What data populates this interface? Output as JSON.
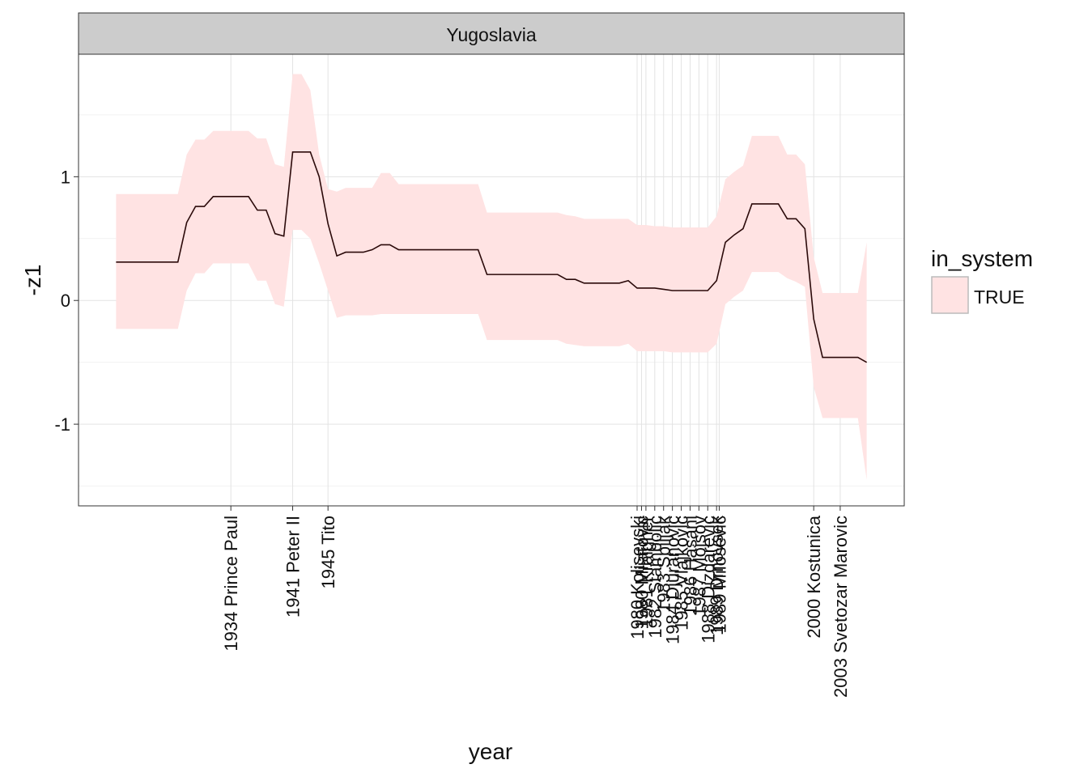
{
  "chart_data": {
    "type": "line",
    "facet": "Yugoslavia",
    "x_label": "year",
    "y_label": "-z1",
    "legend_title": "in_system",
    "x": [
      1921,
      1922,
      1923,
      1924,
      1925,
      1926,
      1927,
      1928,
      1929,
      1930,
      1931,
      1932,
      1933,
      1934,
      1935,
      1936,
      1937,
      1938,
      1939,
      1940,
      1941,
      1942,
      1943,
      1944,
      1945,
      1946,
      1947,
      1948,
      1949,
      1950,
      1951,
      1952,
      1953,
      1954,
      1955,
      1956,
      1957,
      1958,
      1959,
      1960,
      1961,
      1962,
      1963,
      1964,
      1965,
      1966,
      1967,
      1968,
      1969,
      1970,
      1971,
      1972,
      1973,
      1974,
      1975,
      1976,
      1977,
      1978,
      1979,
      1980,
      1981,
      1982,
      1983,
      1984,
      1985,
      1986,
      1987,
      1988,
      1989,
      1990,
      1991,
      1992,
      1993,
      1994,
      1995,
      1996,
      1997,
      1998,
      1999,
      2000,
      2001,
      2002,
      2003,
      2004,
      2005,
      2006
    ],
    "series": [
      {
        "name": "TRUE",
        "color": "#ffe3e3",
        "line_color": "#2b0a0a",
        "values": [
          0.31,
          0.31,
          0.31,
          0.31,
          0.31,
          0.31,
          0.31,
          0.31,
          0.63,
          0.76,
          0.76,
          0.84,
          0.84,
          0.84,
          0.84,
          0.84,
          0.73,
          0.73,
          0.54,
          0.52,
          1.2,
          1.2,
          1.2,
          1.0,
          0.62,
          0.36,
          0.39,
          0.39,
          0.39,
          0.41,
          0.45,
          0.45,
          0.41,
          0.41,
          0.41,
          0.41,
          0.41,
          0.41,
          0.41,
          0.41,
          0.41,
          0.41,
          0.21,
          0.21,
          0.21,
          0.21,
          0.21,
          0.21,
          0.21,
          0.21,
          0.21,
          0.17,
          0.17,
          0.14,
          0.14,
          0.14,
          0.14,
          0.14,
          0.16,
          0.1,
          0.1,
          0.1,
          0.09,
          0.08,
          0.08,
          0.08,
          0.08,
          0.08,
          0.16,
          0.47,
          0.53,
          0.58,
          0.78,
          0.78,
          0.78,
          0.78,
          0.66,
          0.66,
          0.58,
          -0.15,
          -0.46,
          -0.46,
          -0.46,
          -0.46,
          -0.46,
          -0.5
        ],
        "upper": [
          0.86,
          0.86,
          0.86,
          0.86,
          0.86,
          0.86,
          0.86,
          0.86,
          1.18,
          1.3,
          1.3,
          1.37,
          1.37,
          1.37,
          1.37,
          1.37,
          1.31,
          1.31,
          1.1,
          1.08,
          1.83,
          1.83,
          1.7,
          1.18,
          0.9,
          0.88,
          0.91,
          0.91,
          0.91,
          0.91,
          1.03,
          1.03,
          0.94,
          0.94,
          0.94,
          0.94,
          0.94,
          0.94,
          0.94,
          0.94,
          0.94,
          0.94,
          0.71,
          0.71,
          0.71,
          0.71,
          0.71,
          0.71,
          0.71,
          0.71,
          0.71,
          0.69,
          0.68,
          0.66,
          0.66,
          0.66,
          0.66,
          0.66,
          0.66,
          0.61,
          0.61,
          0.6,
          0.6,
          0.59,
          0.59,
          0.59,
          0.59,
          0.59,
          0.68,
          0.98,
          1.04,
          1.09,
          1.33,
          1.33,
          1.33,
          1.33,
          1.18,
          1.18,
          1.1,
          0.35,
          0.06,
          0.06,
          0.06,
          0.06,
          0.06,
          0.47
        ],
        "lower": [
          -0.23,
          -0.23,
          -0.23,
          -0.23,
          -0.23,
          -0.23,
          -0.23,
          -0.23,
          0.08,
          0.22,
          0.22,
          0.3,
          0.3,
          0.3,
          0.3,
          0.3,
          0.16,
          0.16,
          -0.03,
          -0.05,
          0.57,
          0.57,
          0.5,
          0.3,
          0.08,
          -0.14,
          -0.12,
          -0.12,
          -0.12,
          -0.12,
          -0.11,
          -0.11,
          -0.11,
          -0.11,
          -0.11,
          -0.11,
          -0.11,
          -0.11,
          -0.11,
          -0.11,
          -0.11,
          -0.11,
          -0.32,
          -0.32,
          -0.32,
          -0.32,
          -0.32,
          -0.32,
          -0.32,
          -0.32,
          -0.32,
          -0.35,
          -0.36,
          -0.37,
          -0.37,
          -0.37,
          -0.37,
          -0.37,
          -0.35,
          -0.41,
          -0.41,
          -0.41,
          -0.41,
          -0.42,
          -0.42,
          -0.42,
          -0.42,
          -0.42,
          -0.35,
          -0.03,
          0.03,
          0.08,
          0.23,
          0.23,
          0.23,
          0.23,
          0.18,
          0.15,
          0.11,
          -0.7,
          -0.95,
          -0.95,
          -0.95,
          -0.95,
          -0.95,
          -1.45
        ]
      }
    ],
    "xlim": [
      1916.75,
      2010.25
    ],
    "ylim": [
      -1.66,
      1.99
    ],
    "xticks": [
      {
        "value": 1934,
        "label": "1934 Prince Paul"
      },
      {
        "value": 1941,
        "label": "1941 Peter II"
      },
      {
        "value": 1945,
        "label": "1945 Tito"
      },
      {
        "value": 1980,
        "label": "1980 Kolisevski"
      },
      {
        "value": 1980.5,
        "label": "1980 Mijatovic"
      },
      {
        "value": 1981,
        "label": "1981 Kraigher"
      },
      {
        "value": 1982,
        "label": "1982 Stambolic"
      },
      {
        "value": 1983,
        "label": "1983 Spiljak"
      },
      {
        "value": 1984,
        "label": "1984 Djuranovic"
      },
      {
        "value": 1985,
        "label": "1985 Vlajkovic"
      },
      {
        "value": 1986,
        "label": "1986 Hasani"
      },
      {
        "value": 1987,
        "label": "1987 Mojsov"
      },
      {
        "value": 1988,
        "label": "1988 Dizdarevic"
      },
      {
        "value": 1989,
        "label": "1989 Drnovsek"
      },
      {
        "value": 1989.3,
        "label": "1989 Milosevic"
      },
      {
        "value": 2000,
        "label": "2000 Kostunica"
      },
      {
        "value": 2003,
        "label": "2003 Svetozar Marovic"
      }
    ],
    "yticks": [
      -1,
      0,
      1
    ],
    "yminorticks": [
      -1.5,
      -0.5,
      0.5,
      1.5
    ],
    "grid": true
  }
}
